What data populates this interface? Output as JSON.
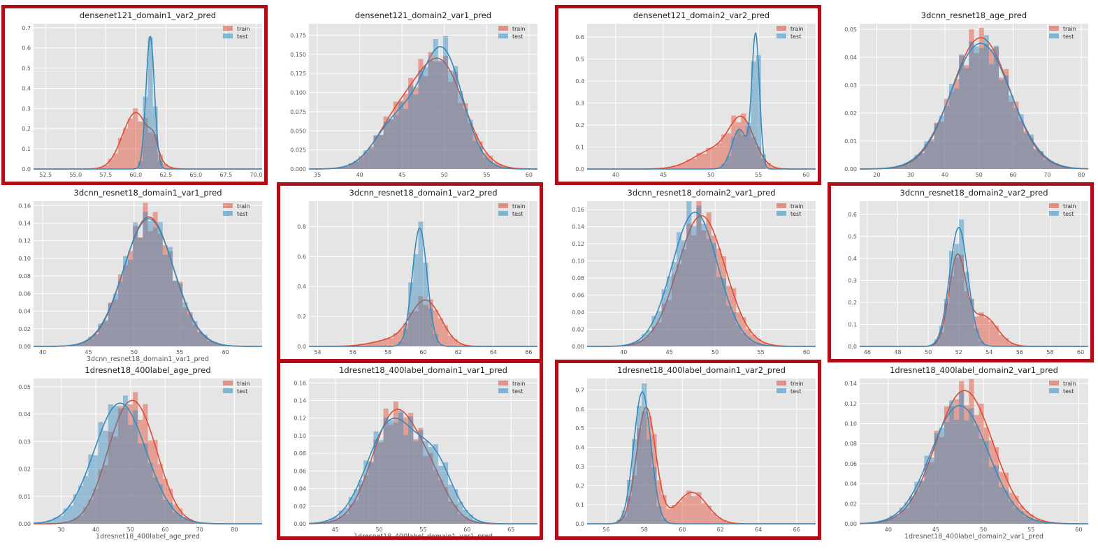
{
  "colors": {
    "train": "#E24A33",
    "test": "#348ABD",
    "highlight": "#b00e17",
    "plot_bg": "#E5E5E5"
  },
  "legend": {
    "train": "train",
    "test": "test"
  },
  "chart_data": [
    {
      "type": "histogram",
      "title": "densenet121_domain1_var2_pred",
      "xlabel": "",
      "xlim": [
        51.5,
        70.5
      ],
      "ylim": [
        0,
        0.72
      ],
      "xticks": [
        "52.5",
        "55.0",
        "57.5",
        "60.0",
        "62.5",
        "65.0",
        "67.5",
        "70.0"
      ],
      "yticks": [
        "0.0",
        "0.1",
        "0.2",
        "0.3",
        "0.4",
        "0.5",
        "0.6",
        "0.7"
      ],
      "highlighted": true,
      "legend_position": "upper right",
      "series": [
        {
          "name": "train",
          "components": [
            [
              60.0,
              1.1,
              0.8
            ],
            [
              61.5,
              0.35,
              0.2
            ]
          ],
          "peak": 0.28
        },
        {
          "name": "test",
          "components": [
            [
              61.2,
              0.35,
              1
            ]
          ],
          "peak": 0.66
        }
      ]
    },
    {
      "type": "histogram",
      "title": "densenet121_domain2_var1_pred",
      "xlabel": "",
      "xlim": [
        34,
        61
      ],
      "ylim": [
        0,
        0.19
      ],
      "xticks": [
        "35",
        "40",
        "45",
        "50",
        "55",
        "60"
      ],
      "yticks": [
        "0.000",
        "0.025",
        "0.050",
        "0.075",
        "0.100",
        "0.125",
        "0.150",
        "0.175"
      ],
      "highlighted": false,
      "legend_position": "upper right",
      "series": [
        {
          "name": "train",
          "components": [
            [
              49.6,
              2.8,
              1
            ],
            [
              44.5,
              2.6,
              0.45
            ]
          ],
          "peak": 0.145
        },
        {
          "name": "test",
          "components": [
            [
              49.8,
              2.4,
              1
            ],
            [
              44.5,
              2.6,
              0.42
            ]
          ],
          "peak": 0.16
        }
      ]
    },
    {
      "type": "histogram",
      "title": "densenet121_domain2_var2_pred",
      "xlabel": "",
      "xlim": [
        37,
        61
      ],
      "ylim": [
        0,
        0.66
      ],
      "xticks": [
        "40",
        "45",
        "50",
        "55",
        "60"
      ],
      "yticks": [
        "0.0",
        "0.1",
        "0.2",
        "0.3",
        "0.4",
        "0.5",
        "0.6"
      ],
      "highlighted": true,
      "legend_position": "upper right",
      "series": [
        {
          "name": "train",
          "components": [
            [
              53.3,
              1.3,
              1
            ],
            [
              50.5,
              2.2,
              0.45
            ]
          ],
          "peak": 0.24
        },
        {
          "name": "test",
          "components": [
            [
              54.7,
              0.4,
              1
            ],
            [
              53,
              0.8,
              0.3
            ]
          ],
          "peak": 0.62
        }
      ]
    },
    {
      "type": "histogram",
      "title": "3dcnn_resnet18_age_pred",
      "xlabel": "",
      "xlim": [
        15,
        82
      ],
      "ylim": [
        0,
        0.052
      ],
      "xticks": [
        "20",
        "30",
        "40",
        "50",
        "60",
        "70",
        "80"
      ],
      "yticks": [
        "0.00",
        "0.01",
        "0.02",
        "0.03",
        "0.04",
        "0.05"
      ],
      "highlighted": false,
      "legend_position": "upper right",
      "series": [
        {
          "name": "train",
          "components": [
            [
              50.5,
              8.5,
              1
            ]
          ],
          "peak": 0.047
        },
        {
          "name": "test",
          "components": [
            [
              50.5,
              8.8,
              1
            ]
          ],
          "peak": 0.045
        }
      ]
    },
    {
      "type": "histogram",
      "title": "3dcnn_resnet18_domain1_var1_pred",
      "xlabel": "3dcnn_resnet18_domain1_var1_pred",
      "xlim": [
        39,
        64
      ],
      "ylim": [
        0,
        0.165
      ],
      "xticks": [
        "40",
        "45",
        "50",
        "55",
        "60"
      ],
      "yticks": [
        "0.00",
        "0.02",
        "0.04",
        "0.06",
        "0.08",
        "0.10",
        "0.12",
        "0.14",
        "0.16"
      ],
      "highlighted": false,
      "legend_position": "upper right",
      "series": [
        {
          "name": "train",
          "components": [
            [
              51.6,
              2.7,
              1
            ]
          ],
          "peak": 0.147
        },
        {
          "name": "test",
          "components": [
            [
              51.6,
              2.75,
              1
            ]
          ],
          "peak": 0.145
        }
      ]
    },
    {
      "type": "histogram",
      "title": "3dcnn_resnet18_domain1_var2_pred",
      "xlabel": "",
      "xlim": [
        53.5,
        66.5
      ],
      "ylim": [
        0,
        0.97
      ],
      "xticks": [
        "54",
        "56",
        "58",
        "60",
        "62",
        "64",
        "66"
      ],
      "yticks": [
        "0.0",
        "0.2",
        "0.4",
        "0.6",
        "0.8"
      ],
      "highlighted": true,
      "legend_position": "upper right",
      "series": [
        {
          "name": "train",
          "components": [
            [
              60.5,
              0.75,
              1
            ],
            [
              59.7,
              0.7,
              0.7
            ],
            [
              58.5,
              1.2,
              0.25
            ]
          ],
          "peak": 0.31
        },
        {
          "name": "test",
          "components": [
            [
              59.8,
              0.42,
              1
            ]
          ],
          "peak": 0.79
        }
      ]
    },
    {
      "type": "histogram",
      "title": "3dcnn_resnet18_domain2_var1_pred",
      "xlabel": "",
      "xlim": [
        36,
        61
      ],
      "ylim": [
        0,
        0.17
      ],
      "xticks": [
        "40",
        "45",
        "50",
        "55",
        "60"
      ],
      "yticks": [
        "0.00",
        "0.02",
        "0.04",
        "0.06",
        "0.08",
        "0.10",
        "0.12",
        "0.14",
        "0.16"
      ],
      "highlighted": false,
      "legend_position": "upper right",
      "series": [
        {
          "name": "train",
          "components": [
            [
              48.5,
              2.6,
              1
            ]
          ],
          "peak": 0.153
        },
        {
          "name": "test",
          "components": [
            [
              47.8,
              2.5,
              1
            ]
          ],
          "peak": 0.157
        }
      ]
    },
    {
      "type": "histogram",
      "title": "3dcnn_resnet18_domain2_var2_pred",
      "xlabel": "",
      "xlim": [
        45.5,
        60.5
      ],
      "ylim": [
        0,
        0.66
      ],
      "xticks": [
        "46",
        "48",
        "50",
        "52",
        "54",
        "56",
        "58",
        "60"
      ],
      "yticks": [
        "0.0",
        "0.1",
        "0.2",
        "0.3",
        "0.4",
        "0.5",
        "0.6"
      ],
      "highlighted": true,
      "legend_position": "upper right",
      "series": [
        {
          "name": "train",
          "components": [
            [
              51.9,
              0.55,
              1
            ],
            [
              53.6,
              0.9,
              0.35
            ]
          ],
          "peak": 0.42
        },
        {
          "name": "test",
          "components": [
            [
              52,
              0.6,
              1
            ]
          ],
          "peak": 0.54
        }
      ]
    },
    {
      "type": "histogram",
      "title": "1dresnet18_400label_age_pred",
      "xlabel": "1dresnet18_400label_age_pred",
      "xlim": [
        22,
        88
      ],
      "ylim": [
        0,
        0.053
      ],
      "xticks": [
        "30",
        "40",
        "50",
        "60",
        "70",
        "80"
      ],
      "yticks": [
        "0.00",
        "0.01",
        "0.02",
        "0.03",
        "0.04",
        "0.05"
      ],
      "highlighted": false,
      "legend_position": "upper right",
      "series": [
        {
          "name": "train",
          "components": [
            [
              47,
              5.5,
              1
            ],
            [
              54,
              5.5,
              1
            ]
          ],
          "peak": 0.045
        },
        {
          "name": "test",
          "components": [
            [
              47,
              7.5,
              1
            ]
          ],
          "peak": 0.044
        }
      ]
    },
    {
      "type": "histogram",
      "title": "1dresnet18_400label_domain1_var1_pred",
      "xlabel": "1dresnet18_400label_domain1_var1_pred",
      "xlim": [
        42,
        68
      ],
      "ylim": [
        0,
        0.165
      ],
      "xticks": [
        "45",
        "50",
        "55",
        "60",
        "65"
      ],
      "yticks": [
        "0.00",
        "0.02",
        "0.04",
        "0.06",
        "0.08",
        "0.10",
        "0.12",
        "0.14",
        "0.16"
      ],
      "highlighted": true,
      "legend_position": "upper right",
      "series": [
        {
          "name": "train",
          "components": [
            [
              51.8,
              2.6,
              1
            ],
            [
              56,
              2,
              0.3
            ]
          ],
          "peak": 0.13
        },
        {
          "name": "test",
          "components": [
            [
              51.5,
              2.8,
              1
            ],
            [
              56.5,
              2,
              0.5
            ]
          ],
          "peak": 0.12
        }
      ]
    },
    {
      "type": "histogram",
      "title": "1dresnet18_400label_domain1_var2_pred",
      "xlabel": "",
      "xlim": [
        55,
        67
      ],
      "ylim": [
        0,
        0.76
      ],
      "xticks": [
        "56",
        "58",
        "60",
        "62",
        "64",
        "66"
      ],
      "yticks": [
        "0.0",
        "0.1",
        "0.2",
        "0.3",
        "0.4",
        "0.5",
        "0.6",
        "0.7"
      ],
      "highlighted": true,
      "legend_position": "upper right",
      "series": [
        {
          "name": "train",
          "components": [
            [
              58.1,
              0.5,
              1
            ],
            [
              60.5,
              0.8,
              0.27
            ]
          ],
          "peak": 0.61
        },
        {
          "name": "test",
          "components": [
            [
              57.9,
              0.45,
              1
            ]
          ],
          "peak": 0.69
        }
      ]
    },
    {
      "type": "histogram",
      "title": "1dresnet18_400label_domain2_var1_pred",
      "xlabel": "1dresnet18_400label_domain2_var1_pred",
      "xlim": [
        37,
        61
      ],
      "ylim": [
        0,
        0.145
      ],
      "xticks": [
        "40",
        "45",
        "50",
        "55",
        "60"
      ],
      "yticks": [
        "0.00",
        "0.02",
        "0.04",
        "0.06",
        "0.08",
        "0.10",
        "0.12",
        "0.14"
      ],
      "highlighted": false,
      "legend_position": "upper right",
      "series": [
        {
          "name": "train",
          "components": [
            [
              48,
              3,
              1
            ]
          ],
          "peak": 0.133
        },
        {
          "name": "test",
          "components": [
            [
              47.5,
              3,
              1
            ]
          ],
          "peak": 0.118
        }
      ]
    }
  ]
}
